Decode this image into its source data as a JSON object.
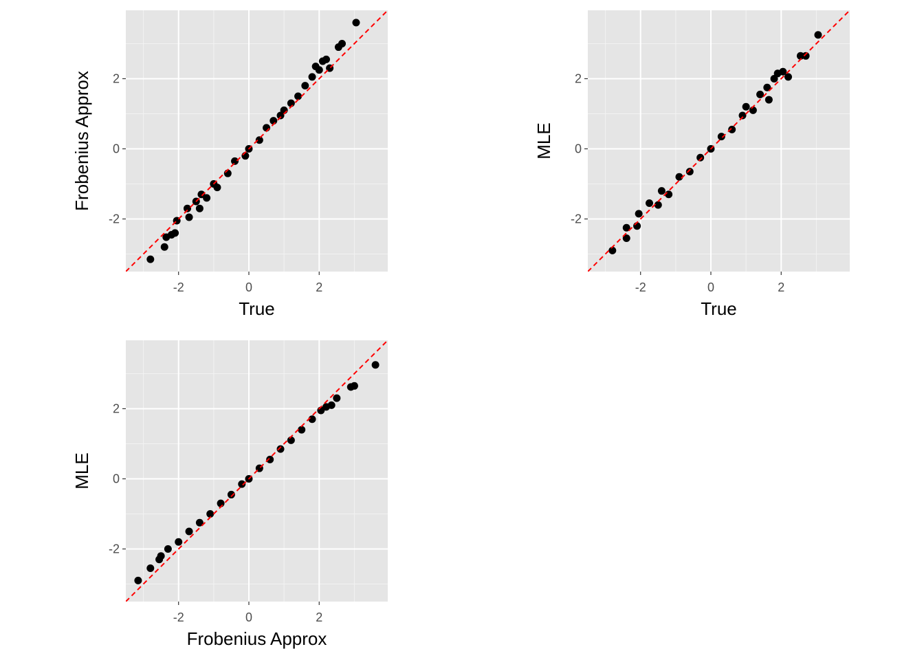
{
  "colors": {
    "panel_background": "#e5e5e5",
    "grid_major": "#ffffff",
    "grid_minor": "#f2f2f2",
    "points": "#000000",
    "reference_line": "#ff0000",
    "tick_label": "#4d4d4d",
    "axis_title": "#000000"
  },
  "chart_data": [
    {
      "type": "scatter",
      "xlabel": "True",
      "ylabel": "Frobenius Approx",
      "xlim": [
        -3.5,
        3.95
      ],
      "ylim": [
        -3.5,
        3.95
      ],
      "xticks": [
        "-2",
        "0",
        "2"
      ],
      "yticks": [
        "-2",
        "0",
        "2"
      ],
      "grid": true,
      "reference_line": {
        "style": "dashed",
        "color": "#ff0000",
        "slope": 1,
        "intercept": 0
      },
      "points": [
        [
          -2.8,
          -3.15
        ],
        [
          -2.4,
          -2.8
        ],
        [
          -2.35,
          -2.52
        ],
        [
          -2.2,
          -2.45
        ],
        [
          -2.1,
          -2.4
        ],
        [
          -2.05,
          -2.05
        ],
        [
          -1.75,
          -1.7
        ],
        [
          -1.7,
          -1.95
        ],
        [
          -1.5,
          -1.5
        ],
        [
          -1.4,
          -1.7
        ],
        [
          -1.35,
          -1.3
        ],
        [
          -1.2,
          -1.4
        ],
        [
          -1.0,
          -1.0
        ],
        [
          -0.9,
          -1.1
        ],
        [
          -0.6,
          -0.7
        ],
        [
          -0.4,
          -0.35
        ],
        [
          -0.1,
          -0.2
        ],
        [
          0.0,
          0.0
        ],
        [
          0.3,
          0.25
        ],
        [
          0.5,
          0.6
        ],
        [
          0.7,
          0.8
        ],
        [
          0.9,
          0.95
        ],
        [
          1.0,
          1.1
        ],
        [
          1.2,
          1.3
        ],
        [
          1.4,
          1.5
        ],
        [
          1.6,
          1.8
        ],
        [
          1.8,
          2.05
        ],
        [
          1.9,
          2.35
        ],
        [
          2.0,
          2.25
        ],
        [
          2.1,
          2.5
        ],
        [
          2.2,
          2.55
        ],
        [
          2.3,
          2.3
        ],
        [
          2.55,
          2.9
        ],
        [
          2.65,
          3.0
        ],
        [
          3.05,
          3.6
        ]
      ]
    },
    {
      "type": "scatter",
      "xlabel": "True",
      "ylabel": "MLE",
      "xlim": [
        -3.5,
        3.95
      ],
      "ylim": [
        -3.5,
        3.95
      ],
      "xticks": [
        "-2",
        "0",
        "2"
      ],
      "yticks": [
        "-2",
        "0",
        "2"
      ],
      "grid": true,
      "reference_line": {
        "style": "dashed",
        "color": "#ff0000",
        "slope": 1,
        "intercept": 0
      },
      "points": [
        [
          -2.8,
          -2.9
        ],
        [
          -2.4,
          -2.55
        ],
        [
          -2.4,
          -2.25
        ],
        [
          -2.1,
          -2.2
        ],
        [
          -2.05,
          -1.85
        ],
        [
          -1.75,
          -1.55
        ],
        [
          -1.5,
          -1.6
        ],
        [
          -1.4,
          -1.2
        ],
        [
          -1.2,
          -1.3
        ],
        [
          -0.9,
          -0.8
        ],
        [
          -0.6,
          -0.65
        ],
        [
          -0.3,
          -0.25
        ],
        [
          0.0,
          0.0
        ],
        [
          0.3,
          0.35
        ],
        [
          0.6,
          0.55
        ],
        [
          0.9,
          0.95
        ],
        [
          1.0,
          1.2
        ],
        [
          1.2,
          1.1
        ],
        [
          1.4,
          1.55
        ],
        [
          1.6,
          1.75
        ],
        [
          1.65,
          1.4
        ],
        [
          1.8,
          2.0
        ],
        [
          1.9,
          2.15
        ],
        [
          2.05,
          2.2
        ],
        [
          2.2,
          2.05
        ],
        [
          2.55,
          2.65
        ],
        [
          2.7,
          2.65
        ],
        [
          3.05,
          3.25
        ]
      ]
    },
    {
      "type": "scatter",
      "xlabel": "Frobenius Approx",
      "ylabel": "MLE",
      "xlim": [
        -3.5,
        3.95
      ],
      "ylim": [
        -3.5,
        3.95
      ],
      "xticks": [
        "-2",
        "0",
        "2"
      ],
      "yticks": [
        "-2",
        "0",
        "2"
      ],
      "grid": true,
      "reference_line": {
        "style": "dashed",
        "color": "#ff0000",
        "slope": 1,
        "intercept": 0
      },
      "points": [
        [
          -3.15,
          -2.9
        ],
        [
          -2.8,
          -2.55
        ],
        [
          -2.55,
          -2.3
        ],
        [
          -2.5,
          -2.2
        ],
        [
          -2.3,
          -2.0
        ],
        [
          -2.0,
          -1.8
        ],
        [
          -1.7,
          -1.5
        ],
        [
          -1.4,
          -1.25
        ],
        [
          -1.1,
          -1.0
        ],
        [
          -0.8,
          -0.7
        ],
        [
          -0.5,
          -0.45
        ],
        [
          -0.2,
          -0.15
        ],
        [
          0.0,
          0.0
        ],
        [
          0.3,
          0.3
        ],
        [
          0.6,
          0.55
        ],
        [
          0.9,
          0.85
        ],
        [
          1.2,
          1.1
        ],
        [
          1.5,
          1.4
        ],
        [
          1.8,
          1.7
        ],
        [
          2.05,
          1.95
        ],
        [
          2.2,
          2.05
        ],
        [
          2.35,
          2.1
        ],
        [
          2.5,
          2.3
        ],
        [
          2.9,
          2.62
        ],
        [
          3.0,
          2.65
        ],
        [
          3.6,
          3.25
        ]
      ]
    }
  ]
}
